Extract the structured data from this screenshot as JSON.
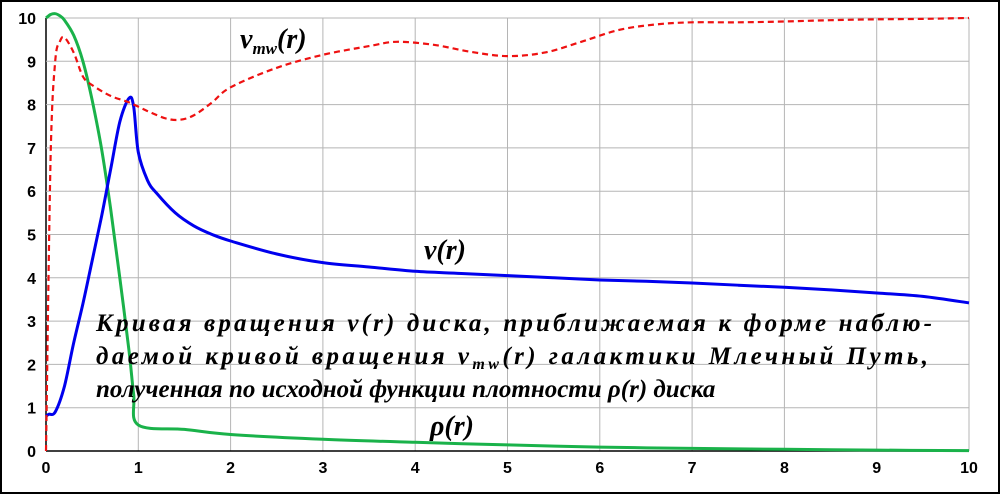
{
  "chart_data": {
    "type": "line",
    "xlim": [
      0,
      10
    ],
    "ylim": [
      0,
      10
    ],
    "x_ticks": [
      0,
      1,
      2,
      3,
      4,
      5,
      6,
      7,
      8,
      9,
      10
    ],
    "y_ticks": [
      0,
      1,
      2,
      3,
      4,
      5,
      6,
      7,
      8,
      9,
      10
    ],
    "grid": true,
    "series": [
      {
        "name": "v(r)",
        "color": "#0000ee",
        "style": "solid",
        "x": [
          0,
          0.03,
          0.1,
          0.2,
          0.3,
          0.4,
          0.5,
          0.6,
          0.7,
          0.8,
          0.9,
          0.95,
          1.0,
          1.1,
          1.2,
          1.4,
          1.6,
          1.8,
          2.0,
          2.5,
          3.0,
          3.5,
          4.0,
          4.5,
          5.0,
          5.5,
          6.0,
          6.5,
          7.0,
          7.5,
          8.0,
          8.5,
          9.0,
          9.5,
          10.0
        ],
        "y": [
          0.8,
          0.85,
          0.9,
          1.5,
          2.5,
          3.4,
          4.4,
          5.4,
          6.5,
          7.6,
          8.15,
          7.95,
          6.9,
          6.25,
          5.95,
          5.5,
          5.2,
          5.0,
          4.85,
          4.55,
          4.35,
          4.25,
          4.15,
          4.1,
          4.05,
          4.0,
          3.95,
          3.92,
          3.88,
          3.83,
          3.78,
          3.72,
          3.65,
          3.57,
          3.42
        ]
      },
      {
        "name": "v_mw(r)",
        "color": "#ee1111",
        "style": "dashed",
        "x": [
          0,
          0.05,
          0.1,
          0.15,
          0.2,
          0.3,
          0.4,
          0.5,
          0.7,
          0.9,
          1.1,
          1.3,
          1.45,
          1.6,
          1.8,
          2.0,
          2.5,
          3.0,
          3.5,
          3.8,
          4.2,
          4.6,
          5.0,
          5.4,
          5.8,
          6.2,
          6.6,
          7.0,
          7.5,
          8.0,
          8.5,
          9.0,
          9.5,
          10.0
        ],
        "y": [
          0,
          6.8,
          9.0,
          9.45,
          9.55,
          9.2,
          8.65,
          8.45,
          8.2,
          8.05,
          7.85,
          7.68,
          7.65,
          7.75,
          8.05,
          8.4,
          8.85,
          9.15,
          9.35,
          9.45,
          9.38,
          9.22,
          9.12,
          9.2,
          9.45,
          9.72,
          9.85,
          9.9,
          9.9,
          9.92,
          9.95,
          9.97,
          9.98,
          10.0
        ]
      },
      {
        "name": "ρ(r)",
        "color": "#1ab24a",
        "style": "solid",
        "x": [
          0,
          0.05,
          0.1,
          0.15,
          0.2,
          0.3,
          0.4,
          0.5,
          0.6,
          0.7,
          0.8,
          0.9,
          0.95,
          1.0,
          1.5,
          2.0,
          3.0,
          4.0,
          5.0,
          6.0,
          7.0,
          8.0,
          9.0,
          10.0
        ],
        "y": [
          10.0,
          10.08,
          10.1,
          10.05,
          9.95,
          9.6,
          9.0,
          8.1,
          7.0,
          5.6,
          4.0,
          2.3,
          1.3,
          0.6,
          0.5,
          0.38,
          0.27,
          0.2,
          0.14,
          0.09,
          0.06,
          0.04,
          0.02,
          0.01
        ]
      }
    ],
    "labels": {
      "v_mw": {
        "main": "v",
        "sub": "mw",
        "tail": "(r)"
      },
      "v": "v(r)",
      "rho": "ρ(r)"
    },
    "caption": {
      "line1": "Кривая вращения v(r) диска, приближаемая к форме наблю-",
      "line2a": "даемой кривой вращения v",
      "line2sub": "mw",
      "line2b": "(r) галактики Млечный Путь,",
      "line3": "полученная по исходной функции плотности ρ(r) диска"
    }
  }
}
